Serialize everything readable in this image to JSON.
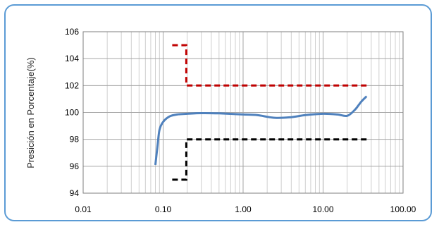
{
  "chart_data": {
    "type": "line",
    "title": "",
    "xlabel": "",
    "ylabel": "Presición en Porcentaje(%)",
    "x_scale": "log",
    "xlim": [
      0.01,
      100
    ],
    "ylim": [
      94,
      106
    ],
    "x_ticks": [
      0.01,
      0.1,
      1,
      10,
      100
    ],
    "x_tick_labels": [
      "0.01",
      "0.10",
      "1.00",
      "10.00",
      "100.00"
    ],
    "y_ticks": [
      94,
      96,
      98,
      100,
      102,
      104,
      106
    ],
    "y_tick_labels": [
      "94",
      "96",
      "98",
      "100",
      "102",
      "104",
      "106"
    ],
    "grid": true,
    "legend": "none",
    "series": [
      {
        "color": "#4f81bd",
        "style": "solid",
        "x": [
          0.08,
          0.085,
          0.09,
          0.1,
          0.12,
          0.15,
          0.2,
          0.3,
          0.5,
          1.0,
          1.5,
          2.5,
          4,
          6,
          10,
          15,
          20,
          25,
          30,
          35
        ],
        "y": [
          96.1,
          97.5,
          98.7,
          99.3,
          99.7,
          99.85,
          99.9,
          99.95,
          99.93,
          99.85,
          99.8,
          99.6,
          99.65,
          99.8,
          99.9,
          99.85,
          99.75,
          100.2,
          100.8,
          101.2
        ]
      },
      {
        "color": "#c00000",
        "style": "dashed",
        "x": [
          0.13,
          0.195,
          0.195,
          35
        ],
        "y": [
          105,
          105,
          102,
          102
        ]
      },
      {
        "color": "#000000",
        "style": "dashed",
        "x": [
          0.13,
          0.195,
          0.195,
          35
        ],
        "y": [
          95,
          95,
          98,
          98
        ]
      }
    ]
  }
}
